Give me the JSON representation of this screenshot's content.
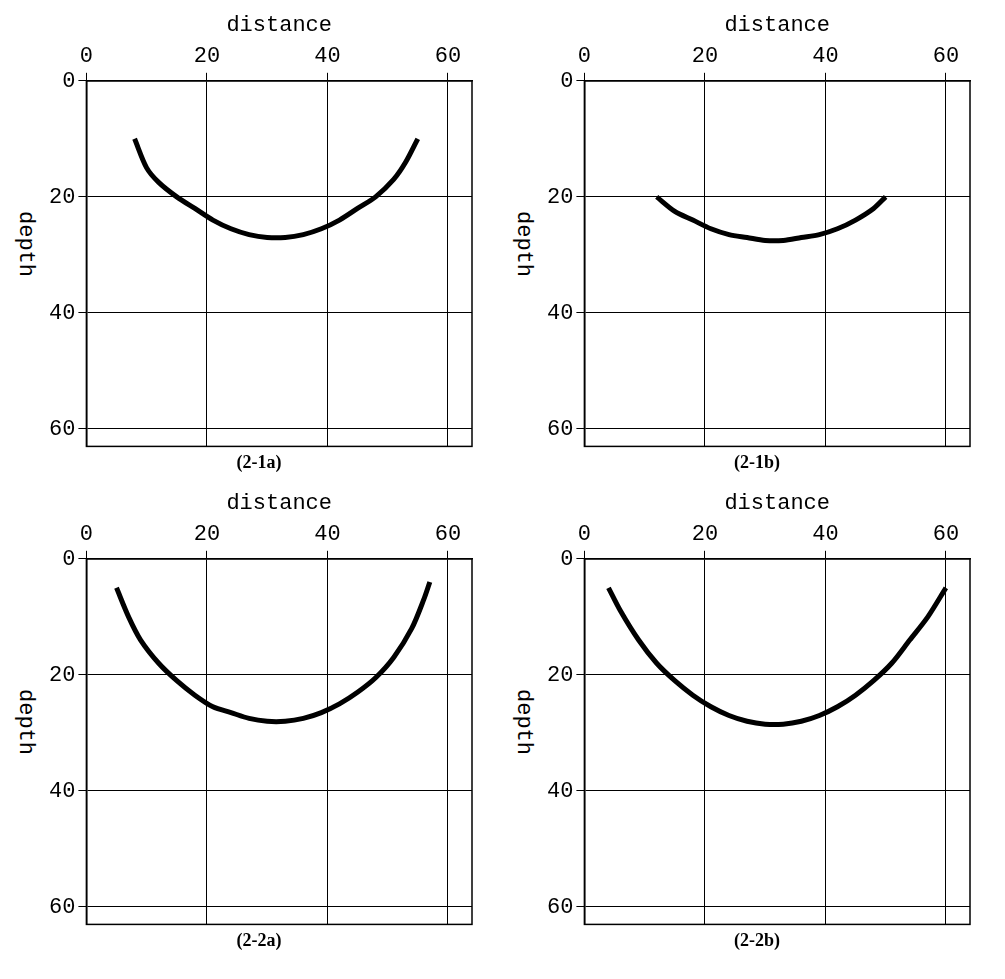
{
  "chart_data": [
    {
      "type": "line",
      "title": "(2-1a)",
      "x_label": "distance",
      "y_label": "depth",
      "x": [
        8,
        10,
        12,
        15,
        18,
        21,
        24,
        27,
        30,
        33,
        36,
        39,
        42,
        45,
        48,
        51,
        53,
        55
      ],
      "values": [
        10,
        15,
        17.5,
        20,
        22,
        24,
        25.5,
        26.5,
        27,
        27,
        26.5,
        25.5,
        24,
        22,
        20,
        17,
        14,
        10
      ],
      "color": "#000000",
      "line_style": "solid",
      "xlim": [
        0,
        64
      ],
      "xticks": [
        0,
        20,
        40,
        60
      ],
      "ylim": [
        0,
        63
      ],
      "yticks": [
        0,
        20,
        40,
        60
      ],
      "grid": true
    },
    {
      "type": "line",
      "title": "(2-1b)",
      "x_label": "distance",
      "y_label": "depth",
      "x": [
        12,
        15,
        18,
        21,
        24,
        27,
        30,
        33,
        36,
        39,
        42,
        45,
        48,
        50
      ],
      "values": [
        20,
        22.5,
        24,
        25.5,
        26.5,
        27,
        27.5,
        27.5,
        27,
        26.5,
        25.5,
        24,
        22,
        20
      ],
      "color": "#000000",
      "line_style": "solid",
      "xlim": [
        0,
        64
      ],
      "xticks": [
        0,
        20,
        40,
        60
      ],
      "ylim": [
        0,
        63
      ],
      "yticks": [
        0,
        20,
        40,
        60
      ],
      "grid": true
    },
    {
      "type": "line",
      "title": "(2-2a)",
      "x_label": "distance",
      "y_label": "depth",
      "x": [
        5,
        7,
        9,
        12,
        15,
        18,
        21,
        24,
        27,
        30,
        33,
        36,
        39,
        42,
        45,
        48,
        51,
        54,
        56,
        57
      ],
      "values": [
        5,
        10,
        14,
        18,
        21,
        23.5,
        25.5,
        26.5,
        27.5,
        28,
        28,
        27.5,
        26.5,
        25,
        23,
        20.5,
        17,
        12,
        7,
        4
      ],
      "color": "#000000",
      "line_style": "solid",
      "xlim": [
        0,
        64
      ],
      "xticks": [
        0,
        20,
        40,
        60
      ],
      "ylim": [
        0,
        63
      ],
      "yticks": [
        0,
        20,
        40,
        60
      ],
      "grid": true
    },
    {
      "type": "line",
      "title": "(2-2b)",
      "x_label": "distance",
      "y_label": "depth",
      "x": [
        4,
        6,
        9,
        12,
        15,
        18,
        21,
        24,
        27,
        30,
        33,
        36,
        39,
        42,
        45,
        48,
        51,
        54,
        57,
        60
      ],
      "values": [
        5,
        9,
        14,
        18,
        21,
        23.5,
        25.5,
        27,
        28,
        28.5,
        28.5,
        28,
        27,
        25.5,
        23.5,
        21,
        18,
        14,
        10,
        5
      ],
      "color": "#000000",
      "line_style": "solid",
      "xlim": [
        0,
        64
      ],
      "xticks": [
        0,
        20,
        40,
        60
      ],
      "ylim": [
        0,
        63
      ],
      "yticks": [
        0,
        20,
        40,
        60
      ],
      "grid": true
    }
  ]
}
